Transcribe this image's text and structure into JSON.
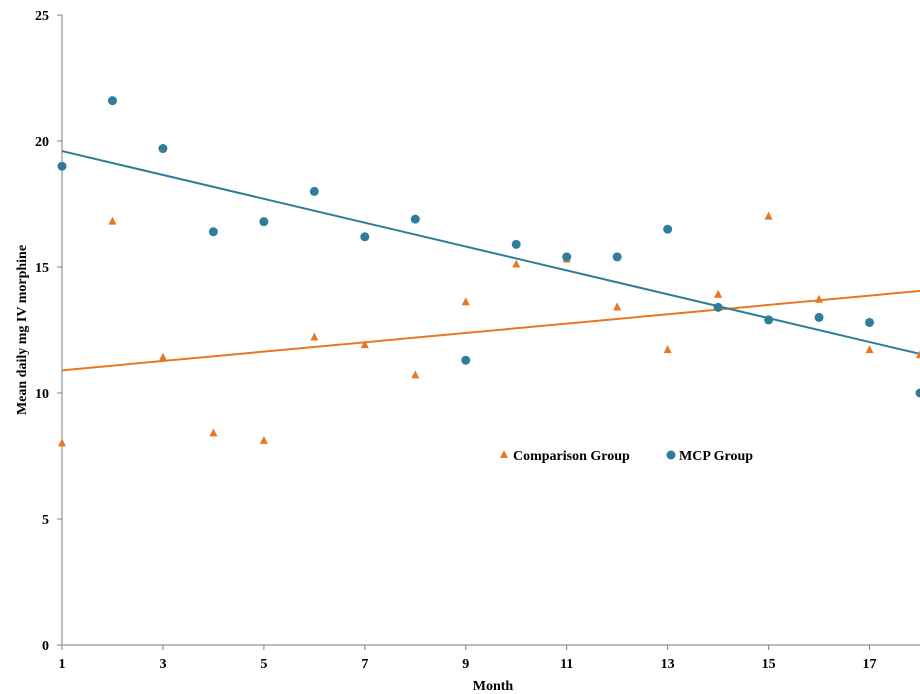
{
  "chart_data": {
    "type": "scatter",
    "title": "",
    "xlabel": "Month",
    "ylabel": "Mean daily mg IV morphine",
    "xlim": [
      1,
      18
    ],
    "ylim": [
      0,
      25
    ],
    "x_ticks": [
      "1",
      "3",
      "5",
      "7",
      "9",
      "11",
      "13",
      "15",
      "17"
    ],
    "y_ticks": [
      "0",
      "5",
      "10",
      "15",
      "20",
      "25"
    ],
    "grid": false,
    "legend_position": "center-right",
    "series": [
      {
        "name": "Comparison Group",
        "marker": "triangle",
        "color": "#E87722",
        "x": [
          1,
          2,
          3,
          4,
          5,
          6,
          7,
          8,
          9,
          10,
          11,
          12,
          13,
          14,
          15,
          16,
          17,
          18
        ],
        "y": [
          8.0,
          16.8,
          11.4,
          8.4,
          8.1,
          12.2,
          11.9,
          10.7,
          13.6,
          15.1,
          15.3,
          13.4,
          11.7,
          13.9,
          17.0,
          13.7,
          11.7,
          11.5
        ],
        "trendline": {
          "x": [
            1,
            18
          ],
          "y": [
            10.9,
            14.05
          ],
          "color": "#E87722"
        }
      },
      {
        "name": "MCP Group",
        "marker": "circle",
        "color": "#2E7D9A",
        "x": [
          1,
          2,
          3,
          4,
          5,
          6,
          7,
          8,
          9,
          10,
          11,
          12,
          13,
          14,
          15,
          16,
          17,
          18
        ],
        "y": [
          19.0,
          21.6,
          19.7,
          16.4,
          16.8,
          18.0,
          16.2,
          16.9,
          11.3,
          15.9,
          15.4,
          15.4,
          16.5,
          13.4,
          12.9,
          13.0,
          12.8,
          10.0
        ],
        "trendline": {
          "x": [
            1,
            18
          ],
          "y": [
            19.6,
            11.55
          ],
          "color": "#2E7D9A"
        }
      }
    ]
  }
}
